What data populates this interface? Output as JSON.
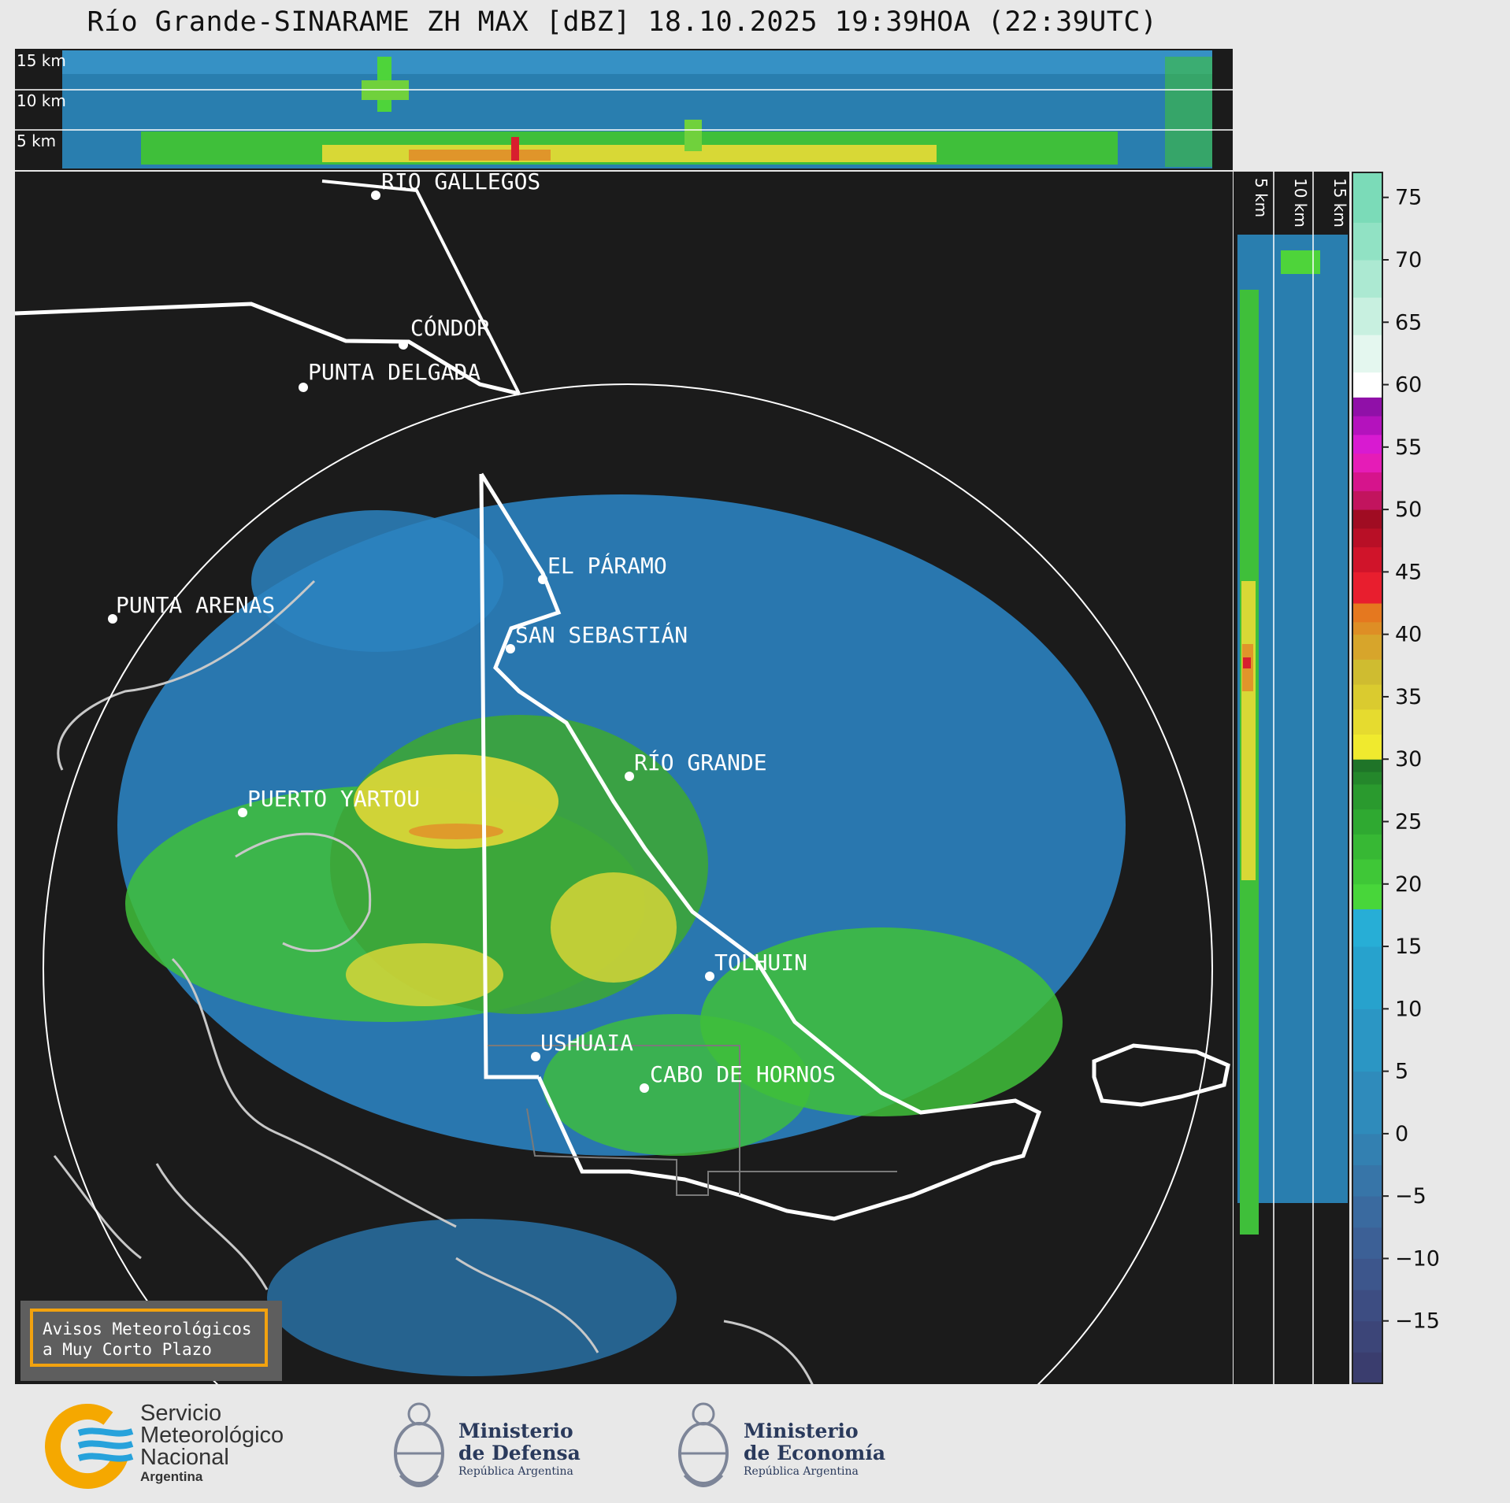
{
  "title": "Río Grande-SINARAME ZH MAX [dBZ] 18.10.2025 19:39HOA (22:39UTC)",
  "top_panel": {
    "altitudes": [
      "15 km",
      "10 km",
      "5 km"
    ]
  },
  "side_panel": {
    "altitudes": [
      "5 km",
      "10 km",
      "15 km"
    ]
  },
  "colorbar": {
    "ticks": [
      "75",
      "70",
      "65",
      "60",
      "55",
      "50",
      "45",
      "40",
      "35",
      "30",
      "25",
      "20",
      "15",
      "10",
      "5",
      "0",
      "−5",
      "−10",
      "−15"
    ],
    "range": [
      -20,
      77
    ]
  },
  "cities": [
    {
      "name": "RÍO GALLEGOS"
    },
    {
      "name": "CÓNDOR"
    },
    {
      "name": "PUNTA DELGADA"
    },
    {
      "name": "EL PÁRAMO"
    },
    {
      "name": "PUNTA ARENAS"
    },
    {
      "name": "SAN SEBASTIÁN"
    },
    {
      "name": "RÍO GRANDE"
    },
    {
      "name": "PUERTO YARTOU"
    },
    {
      "name": "TOLHUIN"
    },
    {
      "name": "USHUAIA"
    },
    {
      "name": "CABO DE HORNOS"
    }
  ],
  "notice": {
    "line1": "Avisos Meteorológicos",
    "line2": "a Muy Corto Plazo"
  },
  "logos": {
    "smn": {
      "line1": "Servicio",
      "line2": "Meteorológico",
      "line3": "Nacional",
      "line4": "Argentina"
    },
    "defensa": {
      "line1": "Ministerio",
      "line2": "de Defensa",
      "line3": "República Argentina"
    },
    "economia": {
      "line1": "Ministerio",
      "line2": "de Economía",
      "line3": "República Argentina"
    }
  }
}
